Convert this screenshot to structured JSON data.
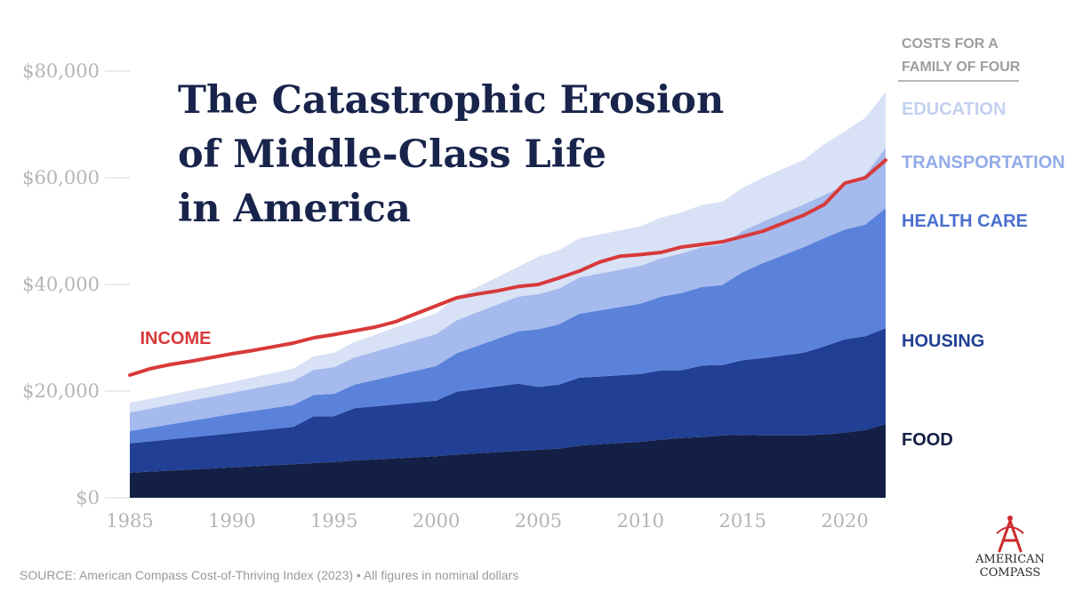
{
  "title": {
    "line1": "The Catastrophic Erosion",
    "line2": "of Middle-Class Life",
    "line3": "in America"
  },
  "legend_header": {
    "line1": "COSTS FOR A",
    "line2": "FAMILY OF FOUR"
  },
  "source": "SOURCE: American Compass Cost-of-Thriving Index (2023) • All figures in nominal dollars",
  "brand": {
    "line1": "AMERICAN",
    "line2": "COMPASS",
    "logo_icon": "compass-a-logo-icon",
    "color": "#cc2b2b"
  },
  "chart_data": {
    "type": "area",
    "stacked": true,
    "title": "The Catastrophic Erosion of Middle-Class Life in America",
    "xlabel": "",
    "ylabel": "",
    "xlim": [
      1985,
      2022
    ],
    "ylim": [
      0,
      80000
    ],
    "x_ticks": [
      {
        "value": 1985,
        "label": "1985"
      },
      {
        "value": 1990,
        "label": "1990"
      },
      {
        "value": 1995,
        "label": "1995"
      },
      {
        "value": 2000,
        "label": "2000"
      },
      {
        "value": 2005,
        "label": "2005"
      },
      {
        "value": 2010,
        "label": "2010"
      },
      {
        "value": 2015,
        "label": "2015"
      },
      {
        "value": 2020,
        "label": "2020"
      }
    ],
    "y_ticks": [
      {
        "value": 0,
        "label": "$0"
      },
      {
        "value": 20000,
        "label": "$20,000"
      },
      {
        "value": 40000,
        "label": "$40,000"
      },
      {
        "value": 60000,
        "label": "$60,000"
      },
      {
        "value": 80000,
        "label": "$80,000"
      }
    ],
    "x": [
      1985,
      1990,
      1993,
      1994,
      1995,
      1996,
      2000,
      2001,
      2004,
      2005,
      2006,
      2007,
      2010,
      2011,
      2012,
      2013,
      2014,
      2015,
      2016,
      2018,
      2019,
      2020,
      2021,
      2022
    ],
    "series": [
      {
        "name": "FOOD",
        "color": "#131f44",
        "label_color": "#131f44",
        "label_value": 11000,
        "values": [
          4700,
          5700,
          6300,
          6500,
          6700,
          7000,
          7800,
          8100,
          8800,
          9000,
          9200,
          9800,
          10500,
          10900,
          11200,
          11400,
          11700,
          11800,
          11700,
          11700,
          11900,
          12200,
          12700,
          13800
        ]
      },
      {
        "name": "HOUSING",
        "color": "#213f94",
        "label_color": "#213f94",
        "label_value": 29500,
        "values": [
          5500,
          6400,
          7000,
          8800,
          8600,
          9800,
          10400,
          11800,
          12600,
          11800,
          12000,
          12700,
          12700,
          13000,
          12700,
          13400,
          13200,
          14000,
          14500,
          15500,
          16500,
          17500,
          17600,
          18000
        ]
      },
      {
        "name": "HEALTH CARE",
        "color": "#5b82db",
        "label_color": "#4a6fcf",
        "label_value": 52000,
        "values": [
          2300,
          3600,
          4100,
          4000,
          4200,
          4400,
          6500,
          7200,
          9800,
          10800,
          11300,
          12000,
          13200,
          13800,
          14500,
          14700,
          15000,
          16500,
          17800,
          19800,
          20300,
          20600,
          20900,
          22500
        ]
      },
      {
        "name": "TRANSPORTATION",
        "color": "#a5baed",
        "label_color": "#92abe8",
        "label_value": 63000,
        "values": [
          3500,
          4000,
          4500,
          4700,
          5000,
          5100,
          6000,
          6200,
          6500,
          6600,
          6700,
          6800,
          7100,
          7200,
          7400,
          7500,
          7600,
          7700,
          7800,
          8000,
          8100,
          8300,
          9300,
          11300
        ]
      },
      {
        "name": "EDUCATION",
        "color": "#d8e1f5",
        "label_color": "#c3d0ef",
        "label_value": 73000,
        "values": [
          1800,
          2000,
          2300,
          2500,
          2700,
          2900,
          3900,
          4300,
          5600,
          7000,
          7200,
          7300,
          7400,
          7600,
          7700,
          7900,
          8000,
          8100,
          8200,
          8400,
          9500,
          10100,
          10700,
          10500
        ]
      }
    ],
    "income": {
      "name": "INCOME",
      "color": "#d8393a",
      "label_x": 1985.5,
      "label_value": 29500,
      "x": [
        1985,
        1986,
        1987,
        1988,
        1989,
        1990,
        1991,
        1992,
        1993,
        1994,
        1995,
        1996,
        1997,
        1998,
        1999,
        2000,
        2001,
        2002,
        2003,
        2004,
        2005,
        2006,
        2007,
        2008,
        2009,
        2010,
        2011,
        2012,
        2013,
        2014,
        2015,
        2016,
        2017,
        2018,
        2019,
        2020,
        2021,
        2022
      ],
      "values": [
        23000,
        24200,
        25000,
        25600,
        26300,
        27000,
        27600,
        28300,
        29000,
        30000,
        30600,
        31300,
        32000,
        33000,
        34500,
        36000,
        37500,
        38200,
        38800,
        39600,
        40000,
        41200,
        42500,
        44200,
        45300,
        45600,
        46000,
        47000,
        47500,
        48000,
        49000,
        50000,
        51500,
        53000,
        55000,
        59000,
        60000,
        63300
      ]
    }
  }
}
